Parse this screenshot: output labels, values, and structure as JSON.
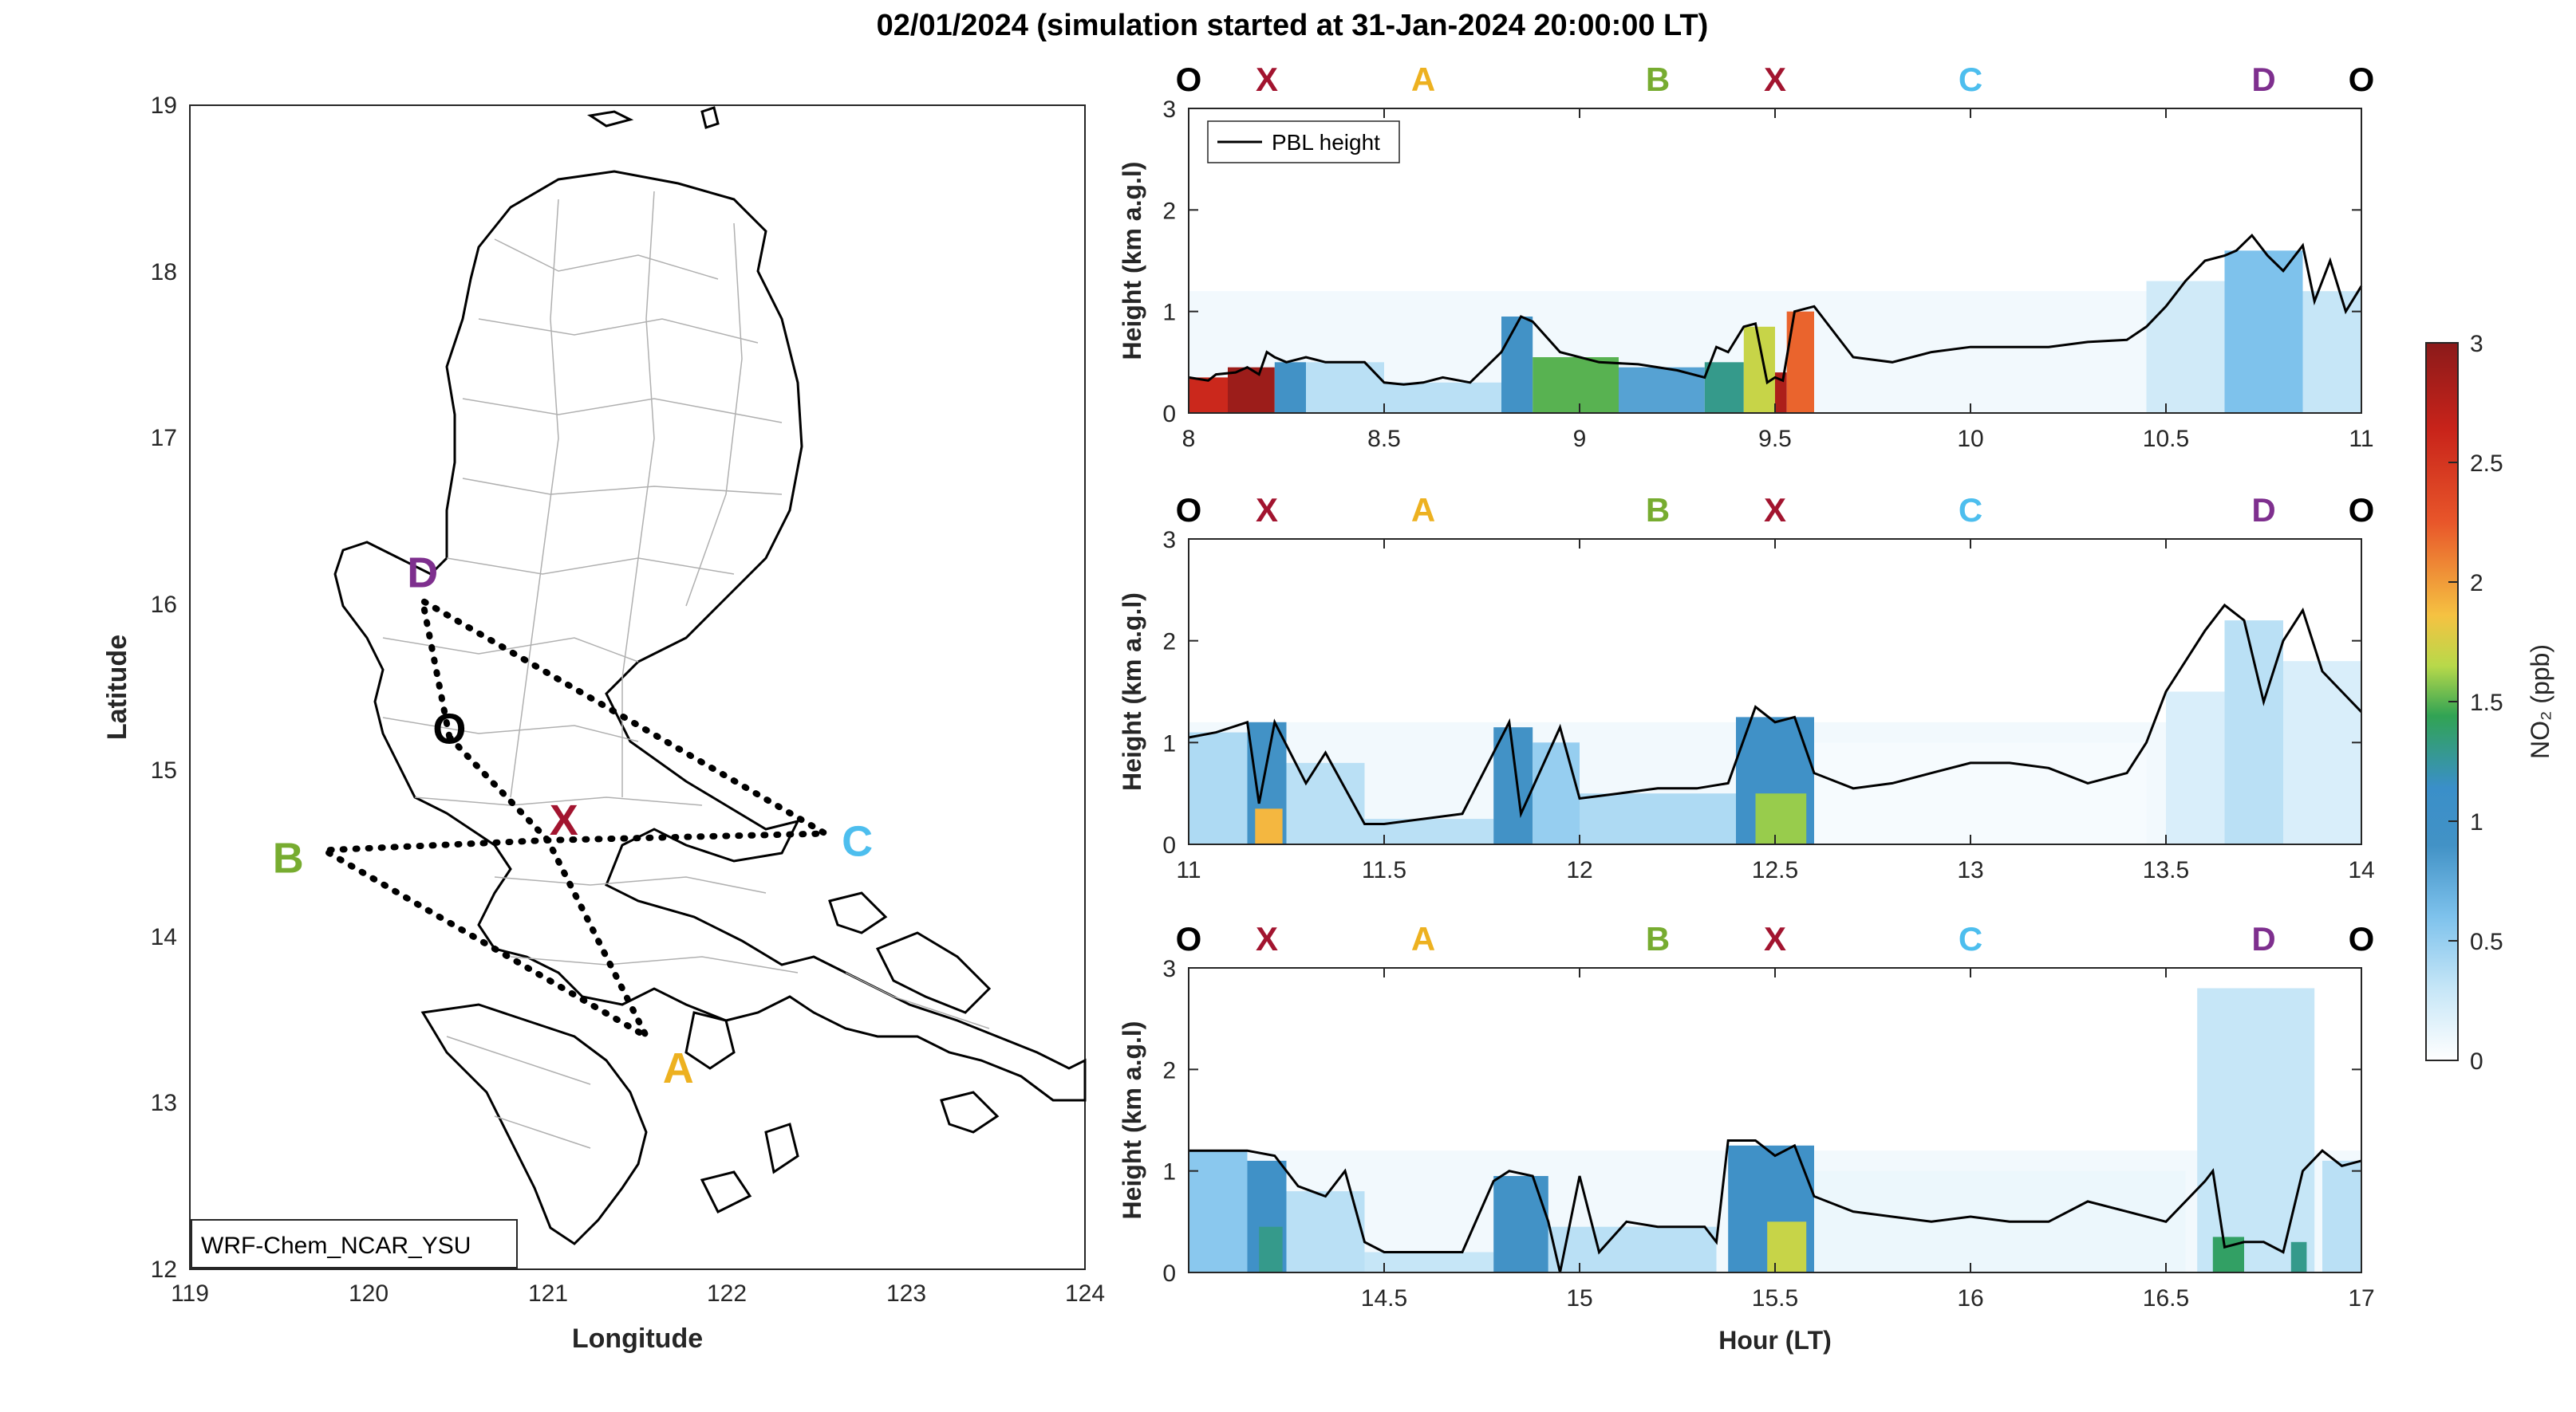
{
  "figure": {
    "title": "02/01/2024 (simulation started at 31-Jan-2024 20:00:00 LT)"
  },
  "colors": {
    "O": "#000000",
    "X": "#a2142f",
    "A": "#edb120",
    "B": "#77ac30",
    "C": "#4dbeee",
    "D": "#7e2f8e",
    "colormap": [
      "#ffffff",
      "#c6e6f7",
      "#7ec2ec",
      "#4292c6",
      "#3a8fc9",
      "#31a354",
      "#b8d94a",
      "#f5c242",
      "#e8562a",
      "#c8231a",
      "#8b1a1a"
    ]
  },
  "chart_data": [
    {
      "type": "map",
      "xlabel": "Longitude",
      "ylabel": "Latitude",
      "xlim": [
        119,
        124
      ],
      "ylim": [
        12,
        19
      ],
      "xticks": [
        119,
        120,
        121,
        122,
        123,
        124
      ],
      "yticks": [
        12,
        13,
        14,
        15,
        16,
        17,
        18,
        19
      ],
      "model_label": "WRF-Chem_NCAR_YSU",
      "points": [
        {
          "label": "O",
          "lon": 120.45,
          "lat": 15.2
        },
        {
          "label": "X",
          "lon": 121.0,
          "lat": 14.58
        },
        {
          "label": "A",
          "lon": 121.55,
          "lat": 13.4
        },
        {
          "label": "B",
          "lon": 119.75,
          "lat": 14.52
        },
        {
          "label": "C",
          "lon": 122.55,
          "lat": 14.62
        },
        {
          "label": "D",
          "lon": 120.3,
          "lat": 16.02
        }
      ],
      "flight_track": [
        "O",
        "X",
        "A",
        "B",
        "X",
        "C",
        "D",
        "O"
      ]
    },
    {
      "type": "heatmap",
      "panel": 1,
      "ylabel": "Height (km a.g.l)",
      "xlim": [
        8,
        11
      ],
      "ylim": [
        0,
        3
      ],
      "xticks": [
        8,
        8.5,
        9,
        9.5,
        10,
        10.5,
        11
      ],
      "yticks": [
        0,
        1,
        2,
        3
      ],
      "legend": "PBL height",
      "top_labels": [
        {
          "t": "O",
          "x": 8.0
        },
        {
          "t": "X",
          "x": 8.2
        },
        {
          "t": "A",
          "x": 8.6
        },
        {
          "t": "B",
          "x": 9.2
        },
        {
          "t": "X",
          "x": 9.5
        },
        {
          "t": "C",
          "x": 10.0
        },
        {
          "t": "D",
          "x": 10.75
        },
        {
          "t": "O",
          "x": 11.0
        }
      ],
      "pbl": {
        "x": [
          8.0,
          8.05,
          8.07,
          8.12,
          8.15,
          8.18,
          8.2,
          8.22,
          8.25,
          8.3,
          8.35,
          8.45,
          8.5,
          8.55,
          8.6,
          8.65,
          8.72,
          8.8,
          8.85,
          8.88,
          8.95,
          9.05,
          9.15,
          9.25,
          9.32,
          9.35,
          9.38,
          9.42,
          9.45,
          9.48,
          9.5,
          9.52,
          9.55,
          9.6,
          9.7,
          9.8,
          9.9,
          10.0,
          10.1,
          10.2,
          10.3,
          10.4,
          10.45,
          10.5,
          10.55,
          10.6,
          10.65,
          10.68,
          10.72,
          10.76,
          10.8,
          10.85,
          10.88,
          10.92,
          10.96,
          11.0
        ],
        "y": [
          0.35,
          0.32,
          0.38,
          0.4,
          0.45,
          0.38,
          0.6,
          0.55,
          0.5,
          0.55,
          0.5,
          0.5,
          0.3,
          0.28,
          0.3,
          0.35,
          0.3,
          0.6,
          0.95,
          0.9,
          0.6,
          0.5,
          0.48,
          0.42,
          0.35,
          0.65,
          0.6,
          0.85,
          0.88,
          0.3,
          0.35,
          0.32,
          1.0,
          1.05,
          0.55,
          0.5,
          0.6,
          0.65,
          0.65,
          0.65,
          0.7,
          0.72,
          0.85,
          1.05,
          1.3,
          1.5,
          1.55,
          1.6,
          1.75,
          1.55,
          1.4,
          1.65,
          1.1,
          1.5,
          1.0,
          1.25
        ]
      },
      "no2": [
        {
          "x0": 8.0,
          "x1": 8.1,
          "y1": 0.35,
          "v": 2.6
        },
        {
          "x0": 8.1,
          "x1": 8.22,
          "y1": 0.45,
          "v": 2.9
        },
        {
          "x0": 8.22,
          "x1": 8.3,
          "y1": 0.5,
          "v": 0.9
        },
        {
          "x0": 8.3,
          "x1": 8.5,
          "y1": 0.5,
          "v": 0.35
        },
        {
          "x0": 8.5,
          "x1": 8.8,
          "y1": 0.3,
          "v": 0.35
        },
        {
          "x0": 8.8,
          "x1": 8.88,
          "y1": 0.95,
          "v": 0.9
        },
        {
          "x0": 8.88,
          "x1": 9.1,
          "y1": 0.55,
          "v": 1.5
        },
        {
          "x0": 9.1,
          "x1": 9.32,
          "y1": 0.45,
          "v": 0.8
        },
        {
          "x0": 9.32,
          "x1": 9.42,
          "y1": 0.5,
          "v": 1.3
        },
        {
          "x0": 9.42,
          "x1": 9.5,
          "y1": 0.85,
          "v": 1.7
        },
        {
          "x0": 9.5,
          "x1": 9.53,
          "y1": 0.4,
          "v": 2.8
        },
        {
          "x0": 9.53,
          "x1": 9.6,
          "y1": 1.0,
          "v": 2.2
        },
        {
          "x0": 10.45,
          "x1": 10.65,
          "y1": 1.3,
          "v": 0.25
        },
        {
          "x0": 10.65,
          "x1": 10.85,
          "y1": 1.6,
          "v": 0.6
        },
        {
          "x0": 10.85,
          "x1": 11.0,
          "y1": 1.2,
          "v": 0.3
        }
      ]
    },
    {
      "type": "heatmap",
      "panel": 2,
      "ylabel": "Height (km a.g.l)",
      "xlim": [
        11,
        14
      ],
      "ylim": [
        0,
        3
      ],
      "xticks": [
        11,
        11.5,
        12,
        12.5,
        13,
        13.5,
        14
      ],
      "yticks": [
        0,
        1,
        2,
        3
      ],
      "top_labels": [
        {
          "t": "O",
          "x": 11.0
        },
        {
          "t": "X",
          "x": 11.2
        },
        {
          "t": "A",
          "x": 11.6
        },
        {
          "t": "B",
          "x": 12.2
        },
        {
          "t": "X",
          "x": 12.5
        },
        {
          "t": "C",
          "x": 13.0
        },
        {
          "t": "D",
          "x": 13.75
        },
        {
          "t": "O",
          "x": 14.0
        }
      ],
      "pbl": {
        "x": [
          11.0,
          11.07,
          11.15,
          11.18,
          11.22,
          11.3,
          11.35,
          11.45,
          11.5,
          11.6,
          11.7,
          11.78,
          11.82,
          11.85,
          11.95,
          12.0,
          12.1,
          12.2,
          12.3,
          12.38,
          12.45,
          12.5,
          12.55,
          12.6,
          12.7,
          12.8,
          12.9,
          13.0,
          13.1,
          13.2,
          13.3,
          13.4,
          13.45,
          13.5,
          13.6,
          13.65,
          13.7,
          13.75,
          13.8,
          13.85,
          13.9,
          13.95,
          14.0
        ],
        "y": [
          1.05,
          1.1,
          1.2,
          0.4,
          1.2,
          0.6,
          0.9,
          0.2,
          0.2,
          0.25,
          0.3,
          0.9,
          1.2,
          0.3,
          1.15,
          0.45,
          0.5,
          0.55,
          0.55,
          0.6,
          1.35,
          1.2,
          1.25,
          0.7,
          0.55,
          0.6,
          0.7,
          0.8,
          0.8,
          0.75,
          0.6,
          0.7,
          1.0,
          1.5,
          2.1,
          2.35,
          2.2,
          1.4,
          2.0,
          2.3,
          1.7,
          1.5,
          1.3
        ]
      },
      "no2": [
        {
          "x0": 11.0,
          "x1": 11.15,
          "y1": 1.1,
          "v": 0.4
        },
        {
          "x0": 11.15,
          "x1": 11.25,
          "y1": 1.2,
          "v": 0.9
        },
        {
          "x0": 11.17,
          "x1": 11.24,
          "y1": 0.35,
          "v": 1.9
        },
        {
          "x0": 11.25,
          "x1": 11.45,
          "y1": 0.8,
          "v": 0.35
        },
        {
          "x0": 11.45,
          "x1": 11.78,
          "y1": 0.25,
          "v": 0.35
        },
        {
          "x0": 11.78,
          "x1": 11.88,
          "y1": 1.15,
          "v": 0.9
        },
        {
          "x0": 11.88,
          "x1": 12.0,
          "y1": 1.0,
          "v": 0.5
        },
        {
          "x0": 12.0,
          "x1": 12.4,
          "y1": 0.5,
          "v": 0.4
        },
        {
          "x0": 12.4,
          "x1": 12.6,
          "y1": 1.25,
          "v": 0.95
        },
        {
          "x0": 12.45,
          "x1": 12.58,
          "y1": 0.5,
          "v": 1.6
        },
        {
          "x0": 12.6,
          "x1": 13.45,
          "y1": 1.0,
          "v": 0.05
        },
        {
          "x0": 13.5,
          "x1": 13.65,
          "y1": 1.5,
          "v": 0.2
        },
        {
          "x0": 13.65,
          "x1": 13.8,
          "y1": 2.2,
          "v": 0.35
        },
        {
          "x0": 13.8,
          "x1": 14.0,
          "y1": 1.8,
          "v": 0.2
        }
      ]
    },
    {
      "type": "heatmap",
      "panel": 3,
      "xlabel": "Hour (LT)",
      "ylabel": "Height (km a.g.l)",
      "xlim": [
        14,
        17
      ],
      "ylim": [
        0,
        3
      ],
      "xticks": [
        14.5,
        15,
        15.5,
        16,
        16.5,
        17
      ],
      "yticks": [
        0,
        1,
        2,
        3
      ],
      "top_labels": [
        {
          "t": "O",
          "x": 14.0
        },
        {
          "t": "X",
          "x": 14.2
        },
        {
          "t": "A",
          "x": 14.6
        },
        {
          "t": "B",
          "x": 15.2
        },
        {
          "t": "X",
          "x": 15.5
        },
        {
          "t": "C",
          "x": 16.0
        },
        {
          "t": "D",
          "x": 16.75
        },
        {
          "t": "O",
          "x": 17.0
        }
      ],
      "pbl": {
        "x": [
          14.0,
          14.08,
          14.15,
          14.22,
          14.28,
          14.35,
          14.4,
          14.45,
          14.5,
          14.6,
          14.7,
          14.78,
          14.82,
          14.88,
          14.92,
          14.95,
          15.0,
          15.05,
          15.12,
          15.2,
          15.32,
          15.35,
          15.38,
          15.45,
          15.5,
          15.55,
          15.6,
          15.7,
          15.8,
          15.9,
          16.0,
          16.1,
          16.2,
          16.3,
          16.4,
          16.5,
          16.6,
          16.62,
          16.65,
          16.7,
          16.75,
          16.8,
          16.85,
          16.9,
          16.95,
          17.0
        ],
        "y": [
          1.2,
          1.2,
          1.2,
          1.15,
          0.85,
          0.75,
          1.0,
          0.3,
          0.2,
          0.2,
          0.2,
          0.9,
          1.0,
          0.95,
          0.5,
          0.0,
          0.95,
          0.2,
          0.5,
          0.45,
          0.45,
          0.3,
          1.3,
          1.3,
          1.15,
          1.25,
          0.75,
          0.6,
          0.55,
          0.5,
          0.55,
          0.5,
          0.5,
          0.7,
          0.6,
          0.5,
          0.9,
          1.0,
          0.25,
          0.3,
          0.3,
          0.2,
          1.0,
          1.2,
          1.05,
          1.1
        ]
      },
      "no2": [
        {
          "x0": 14.0,
          "x1": 14.15,
          "y1": 1.2,
          "v": 0.55
        },
        {
          "x0": 14.15,
          "x1": 14.25,
          "y1": 1.1,
          "v": 0.95
        },
        {
          "x0": 14.18,
          "x1": 14.24,
          "y1": 0.45,
          "v": 1.3
        },
        {
          "x0": 14.25,
          "x1": 14.45,
          "y1": 0.8,
          "v": 0.35
        },
        {
          "x0": 14.45,
          "x1": 14.78,
          "y1": 0.2,
          "v": 0.3
        },
        {
          "x0": 14.78,
          "x1": 14.92,
          "y1": 0.95,
          "v": 0.9
        },
        {
          "x0": 14.92,
          "x1": 15.35,
          "y1": 0.45,
          "v": 0.35
        },
        {
          "x0": 15.38,
          "x1": 15.6,
          "y1": 1.25,
          "v": 0.95
        },
        {
          "x0": 15.48,
          "x1": 15.58,
          "y1": 0.5,
          "v": 1.7
        },
        {
          "x0": 15.6,
          "x1": 16.55,
          "y1": 1.0,
          "v": 0.1
        },
        {
          "x0": 16.58,
          "x1": 16.88,
          "y1": 2.8,
          "v": 0.3
        },
        {
          "x0": 16.62,
          "x1": 16.7,
          "y1": 0.35,
          "v": 1.4
        },
        {
          "x0": 16.82,
          "x1": 16.86,
          "y1": 0.3,
          "v": 1.3
        },
        {
          "x0": 16.9,
          "x1": 17.0,
          "y1": 1.1,
          "v": 0.35
        }
      ]
    },
    {
      "type": "colorbar",
      "label": "NO₂ (ppb)",
      "range": [
        0,
        3
      ],
      "ticks": [
        0,
        0.5,
        1,
        1.5,
        2,
        2.5,
        3
      ]
    }
  ]
}
